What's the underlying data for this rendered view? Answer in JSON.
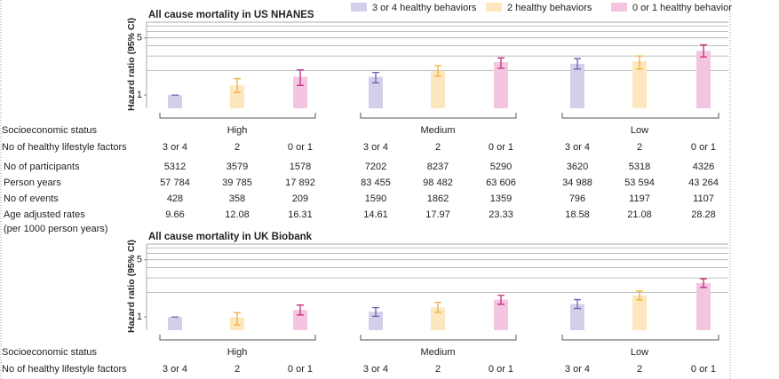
{
  "chart_data": [
    {
      "type": "bar",
      "title": "All cause mortality in US NHANES",
      "ylabel": "Hazard ratio (95% CI)",
      "log_scale": true,
      "ylim": [
        0.69,
        7.4
      ],
      "yticks": [
        1,
        5
      ],
      "minor_grid": [
        2,
        3,
        4,
        5,
        6,
        7
      ],
      "group_row_label": "Socioeconomic status",
      "factor_row_label": "No of healthy lifestyle factors",
      "categories": [
        "High",
        "Medium",
        "Low"
      ],
      "legend": "top",
      "series": [
        {
          "name": "3 or 4 healthy behaviors",
          "label": "3 or 4",
          "color": "#d3cfeb",
          "error_color": "#6c61b0",
          "values": [
            1.0,
            1.67,
            2.41
          ],
          "ci_low": [
            1.0,
            1.41,
            2.08
          ],
          "ci_high": [
            1.0,
            1.89,
            2.8
          ]
        },
        {
          "name": "2 healthy behaviors",
          "label": "2",
          "color": "#fde7bf",
          "error_color": "#f0b03a",
          "values": [
            1.31,
            1.98,
            2.59
          ],
          "ci_low": [
            1.08,
            1.71,
            2.08
          ],
          "ci_high": [
            1.59,
            2.29,
            3.0
          ]
        },
        {
          "name": "0 or 1 healthy behavior",
          "label": "0 or 1",
          "color": "#f3c5e1",
          "error_color": "#c62a7f",
          "values": [
            1.67,
            2.53,
            3.47
          ],
          "ci_low": [
            1.31,
            2.13,
            2.93
          ],
          "ci_high": [
            2.03,
            2.85,
            4.11
          ]
        }
      ]
    },
    {
      "type": "bar",
      "title": "All cause mortality in UK Biobank",
      "ylabel": "Hazard ratio (95% CI)",
      "log_scale": true,
      "ylim": [
        0.69,
        7.4
      ],
      "yticks": [
        1,
        5
      ],
      "minor_grid": [
        2,
        3,
        4,
        5,
        6,
        7
      ],
      "group_row_label": "Socioeconomic status",
      "factor_row_label": "No of healthy lifestyle factors",
      "categories": [
        "High",
        "Medium",
        "Low"
      ],
      "series": [
        {
          "label": "3 or 4",
          "color": "#d3cfeb",
          "error_color": "#6c61b0",
          "values": [
            1.0,
            1.16,
            1.44
          ],
          "ci_low": [
            1.0,
            1.02,
            1.27
          ],
          "ci_high": [
            1.0,
            1.3,
            1.63
          ]
        },
        {
          "label": "2",
          "color": "#fde7bf",
          "error_color": "#f0b03a",
          "values": [
            0.99,
            1.31,
            1.84
          ],
          "ci_low": [
            0.8,
            1.14,
            1.62
          ],
          "ci_high": [
            1.13,
            1.51,
            2.08
          ]
        },
        {
          "label": "0 or 1",
          "color": "#f3c5e1",
          "error_color": "#c62a7f",
          "values": [
            1.22,
            1.63,
            2.59
          ],
          "ci_low": [
            1.06,
            1.43,
            2.3
          ],
          "ci_high": [
            1.4,
            1.84,
            2.93
          ]
        }
      ]
    }
  ],
  "table": {
    "rows": [
      {
        "label": "No of participants",
        "values": [
          "5312",
          "3579",
          "1578",
          "7202",
          "8237",
          "5290",
          "3620",
          "5318",
          "4326"
        ]
      },
      {
        "label": "Person years",
        "values": [
          "57 784",
          "39 785",
          "17 892",
          "83 455",
          "98 482",
          "63 606",
          "34 988",
          "53 594",
          "43 264"
        ]
      },
      {
        "label": "No of events",
        "values": [
          "428",
          "358",
          "209",
          "1590",
          "1862",
          "1359",
          "796",
          "1197",
          "1107"
        ]
      },
      {
        "label": "Age adjusted rates",
        "sublabel": "(per 1000 person years)",
        "values": [
          "9.66",
          "12.08",
          "16.31",
          "14.61",
          "17.97",
          "23.33",
          "18.58",
          "21.08",
          "28.28"
        ]
      }
    ]
  }
}
